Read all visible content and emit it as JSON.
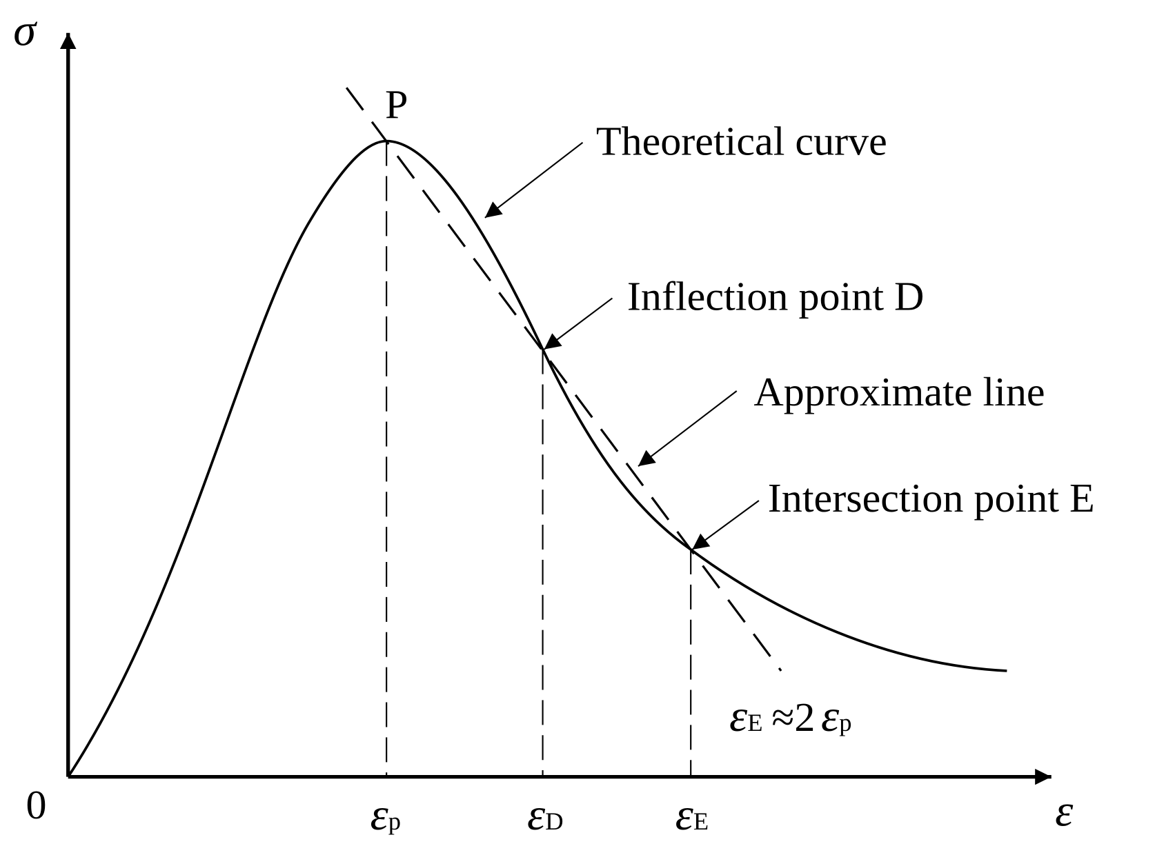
{
  "axes": {
    "y_label": "σ",
    "x_label": "ε",
    "origin": "0"
  },
  "peak_label": "P",
  "ticks": [
    {
      "symbol": "ε",
      "subscript": "p"
    },
    {
      "symbol": "ε",
      "subscript": "D"
    },
    {
      "symbol": "ε",
      "subscript": "E"
    }
  ],
  "annotations": [
    "Theoretical curve",
    "Inflection point D",
    "Approximate line",
    "Intersection point E"
  ],
  "formula": {
    "lhs_symbol": "ε",
    "lhs_subscript": "E",
    "relation": "≈2",
    "rhs_symbol": "ε",
    "rhs_subscript": "p"
  }
}
